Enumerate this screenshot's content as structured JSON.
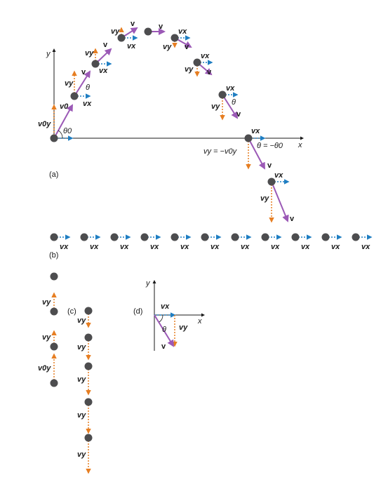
{
  "colors": {
    "ball": "#4d4d4f",
    "velocity": "#9b59b6",
    "horizontal": "#1f7ec2",
    "vertical": "#e67e22",
    "axis": "#1a1a1a"
  },
  "panels": {
    "a": "(a)",
    "b": "(b)",
    "c": "(c)",
    "d": "(d)"
  },
  "axes": {
    "x": "x",
    "y": "y"
  },
  "symbols": {
    "v": "v",
    "vx": "vx",
    "vy": "vy",
    "v0": "v0",
    "v0y": "v0y",
    "theta": "θ",
    "theta0": "θ0"
  },
  "annotations": {
    "vy_end": "vy = −v0y",
    "theta_end": "θ = −θ0"
  }
}
